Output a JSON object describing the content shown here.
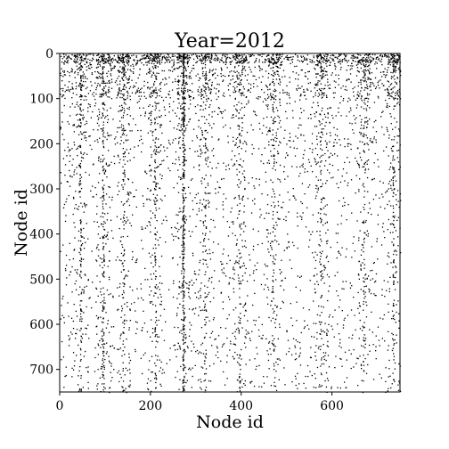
{
  "chart_data": {
    "type": "scatter",
    "title": "Year=2012",
    "xlabel": "Node id",
    "ylabel": "Node id",
    "xlim": [
      0,
      750
    ],
    "ylim": [
      750,
      0
    ],
    "x_ticks": [
      0,
      200,
      400,
      600
    ],
    "y_ticks": [
      0,
      100,
      200,
      300,
      400,
      500,
      600,
      700
    ],
    "grid": false,
    "marker_color": "#000000",
    "random_seed": 2012,
    "point_density": [
      {
        "y_range": [
          0,
          20
        ],
        "points": 900
      },
      {
        "y_range": [
          20,
          100
        ],
        "points": 1100
      },
      {
        "y_range": [
          100,
          250
        ],
        "points": 900
      },
      {
        "y_range": [
          250,
          750
        ],
        "points": 2000
      }
    ],
    "dense_columns": [
      {
        "x": 272,
        "points": 320
      },
      {
        "x": 95,
        "points": 140
      },
      {
        "x": 45,
        "points": 110
      },
      {
        "x": 140,
        "points": 90
      },
      {
        "x": 210,
        "points": 90
      },
      {
        "x": 320,
        "points": 70
      },
      {
        "x": 395,
        "points": 70
      },
      {
        "x": 470,
        "points": 60
      },
      {
        "x": 575,
        "points": 60
      },
      {
        "x": 670,
        "points": 60
      },
      {
        "x": 735,
        "points": 70
      }
    ]
  }
}
